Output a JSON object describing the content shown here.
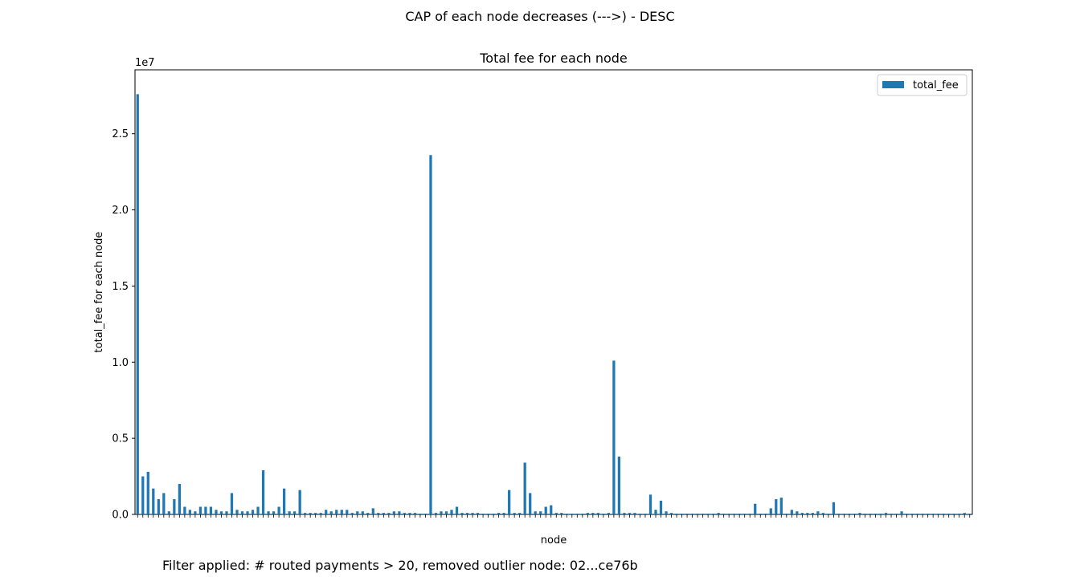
{
  "figure": {
    "suptitle": "CAP of each node decreases (--->) - DESC",
    "footer": "Filter applied: # routed payments > 20, removed outlier node: 02...ce76b"
  },
  "chart_data": {
    "type": "bar",
    "title": "Total fee for each node",
    "xlabel": "node",
    "ylabel": "total_fee for each node",
    "y_offset_label": "1e7",
    "ylim": [
      0,
      2.92
    ],
    "yticks": [
      0.0,
      0.5,
      1.0,
      1.5,
      2.0,
      2.5
    ],
    "ytick_labels": [
      "0.0",
      "0.5",
      "1.0",
      "1.5",
      "2.0",
      "2.5"
    ],
    "legend": {
      "position": "top-right",
      "entries": [
        "total_fee"
      ]
    },
    "color": "#1f77b4",
    "grid": false,
    "series": [
      {
        "name": "total_fee",
        "values": [
          2.76,
          0.25,
          0.28,
          0.17,
          0.1,
          0.14,
          0.02,
          0.1,
          0.2,
          0.05,
          0.03,
          0.02,
          0.05,
          0.05,
          0.05,
          0.03,
          0.02,
          0.02,
          0.14,
          0.03,
          0.02,
          0.02,
          0.03,
          0.05,
          0.29,
          0.02,
          0.02,
          0.05,
          0.17,
          0.02,
          0.02,
          0.16,
          0.01,
          0.01,
          0.01,
          0.01,
          0.03,
          0.02,
          0.03,
          0.03,
          0.03,
          0.01,
          0.02,
          0.02,
          0.01,
          0.04,
          0.01,
          0.01,
          0.01,
          0.02,
          0.02,
          0.01,
          0.01,
          0.01,
          0.005,
          0.005,
          2.36,
          0.01,
          0.02,
          0.02,
          0.03,
          0.05,
          0.01,
          0.01,
          0.01,
          0.01,
          0.005,
          0.005,
          0.005,
          0.01,
          0.01,
          0.16,
          0.01,
          0.01,
          0.34,
          0.14,
          0.02,
          0.02,
          0.05,
          0.06,
          0.01,
          0.01,
          0.005,
          0.005,
          0.005,
          0.005,
          0.01,
          0.01,
          0.01,
          0.005,
          0.01,
          1.01,
          0.38,
          0.01,
          0.01,
          0.01,
          0.005,
          0.005,
          0.13,
          0.03,
          0.09,
          0.02,
          0.01,
          0.005,
          0.005,
          0.005,
          0.005,
          0.005,
          0.005,
          0.005,
          0.005,
          0.01,
          0.005,
          0.005,
          0.005,
          0.005,
          0.005,
          0.005,
          0.07,
          0.005,
          0.005,
          0.04,
          0.1,
          0.11,
          0.005,
          0.03,
          0.02,
          0.01,
          0.01,
          0.01,
          0.02,
          0.01,
          0.005,
          0.08,
          0.005,
          0.005,
          0.005,
          0.005,
          0.01,
          0.005,
          0.005,
          0.005,
          0.005,
          0.01,
          0.005,
          0.005,
          0.02,
          0.005,
          0.005,
          0.005,
          0.005,
          0.005,
          0.005,
          0.005,
          0.005,
          0.005,
          0.005,
          0.005,
          0.01,
          0.005
        ]
      }
    ]
  }
}
